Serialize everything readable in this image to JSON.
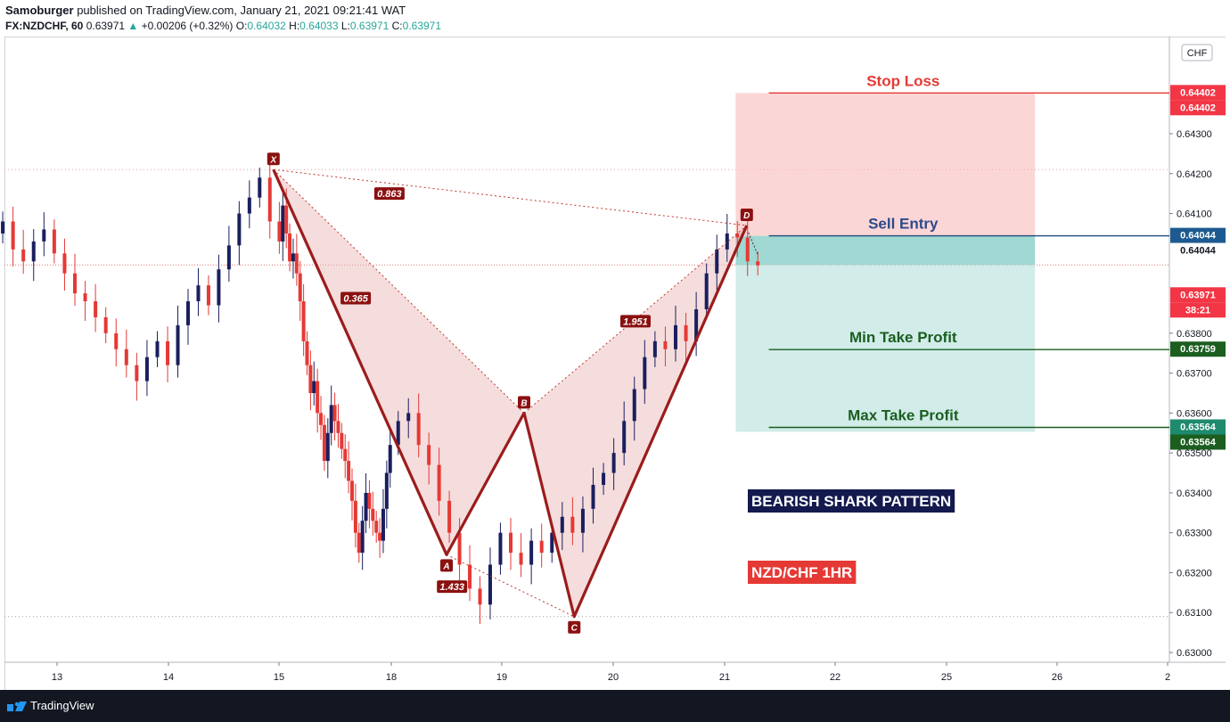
{
  "header": {
    "author": "Samoburger",
    "published_text": "published on TradingView.com, January 21, 2021 09:21:41 WAT",
    "symbol": "FX:NZDCHF, 60",
    "last": "0.63971",
    "change": "+0.00206 (+0.32%)",
    "o_label": "O:",
    "o_value": "0.64032",
    "h_label": "H:",
    "h_value": "0.64033",
    "l_label": "L:",
    "l_value": "0.63971",
    "c_label": "C:",
    "c_value": "0.63971"
  },
  "footer": {
    "brand": "TradingView"
  },
  "chart_data": {
    "type": "candlestick",
    "currency_badge": "CHF",
    "y_ticks": [
      "0.64300",
      "0.64200",
      "0.64100",
      "0.63800",
      "0.63700",
      "0.63600",
      "0.63500",
      "0.63400",
      "0.63300",
      "0.63200",
      "0.63100",
      "0.63000"
    ],
    "x_ticks": [
      "13",
      "14",
      "15",
      "18",
      "19",
      "20",
      "21",
      "22",
      "25",
      "26",
      "2"
    ],
    "price_labels": [
      {
        "text": "0.64402",
        "value": 0.64402,
        "color": "#f23645"
      },
      {
        "text": "0.64402",
        "value": 0.64402,
        "color": "#f23645",
        "offset": 1
      },
      {
        "text": "0.64044",
        "value": 0.64044,
        "color": "#1c5a8f"
      },
      {
        "text": "0.64044",
        "value": 0.64044,
        "color": "#ffffff",
        "text_color": "#131722",
        "offset": 1
      },
      {
        "text": "0.63971",
        "value": 0.63971,
        "color": "#f23645",
        "offset": 2
      },
      {
        "text": "38:21",
        "value": 0.63971,
        "color": "#f23645",
        "offset": 3
      },
      {
        "text": "0.63759",
        "value": 0.63759,
        "color": "#1b5e20"
      },
      {
        "text": "0.63564",
        "value": 0.63564,
        "color": "#1e8a6e"
      },
      {
        "text": "0.63564",
        "value": 0.63564,
        "color": "#1b5e20",
        "offset": 1
      }
    ],
    "pattern_points": [
      {
        "label": "X",
        "day": 14.95,
        "price": 0.6421
      },
      {
        "label": "A",
        "day": 18.5,
        "price": 0.63245
      },
      {
        "label": "B",
        "day": 19.2,
        "price": 0.636
      },
      {
        "label": "C",
        "day": 19.65,
        "price": 0.6309
      },
      {
        "label": "D",
        "day": 21.2,
        "price": 0.6407
      }
    ],
    "ratios": [
      {
        "text": "0.863",
        "day": 17.95,
        "price": 0.6415
      },
      {
        "text": "0.365",
        "day": 17.05,
        "price": 0.63888
      },
      {
        "text": "1.951",
        "day": 20.2,
        "price": 0.6383
      },
      {
        "text": "1.433",
        "day": 18.55,
        "price": 0.63165
      }
    ],
    "trade": {
      "stop_loss_label": "Stop Loss",
      "stop_loss": 0.64402,
      "entry_label": "Sell Entry",
      "entry": 0.64044,
      "min_tp_label": "Min Take Profit",
      "min_tp": 0.63759,
      "max_tp_label": "Max Take Profit",
      "max_tp": 0.63564
    },
    "title": "BEARISH SHARK PATTERN",
    "subtitle": "NZD/CHF    1HR",
    "series_close": [
      0.6392,
      0.6397,
      0.6402,
      0.6399,
      0.6405,
      0.6408,
      0.6401,
      0.6398,
      0.6403,
      0.6406,
      0.64,
      0.6395,
      0.639,
      0.6388,
      0.6384,
      0.638,
      0.6376,
      0.6372,
      0.6368,
      0.6374,
      0.6378,
      0.6372,
      0.6382,
      0.6388,
      0.6392,
      0.6387,
      0.6396,
      0.6402,
      0.641,
      0.6414,
      0.6419,
      0.6408,
      0.6403,
      0.6412,
      0.6405,
      0.6398,
      0.64,
      0.6395,
      0.6388,
      0.6378,
      0.6372,
      0.6365,
      0.6368,
      0.636,
      0.6357,
      0.6348,
      0.6355,
      0.6362,
      0.6358,
      0.6355,
      0.6351,
      0.6348,
      0.6343,
      0.6338,
      0.633,
      0.6325,
      0.6333,
      0.634,
      0.6336,
      0.6333,
      0.633,
      0.6328,
      0.6336,
      0.6345,
      0.6352,
      0.6358,
      0.636,
      0.6352,
      0.6347,
      0.6338,
      0.633,
      0.6322,
      0.6316,
      0.6312,
      0.6322,
      0.633,
      0.6325,
      0.6322,
      0.6328,
      0.6325,
      0.633,
      0.6334,
      0.633,
      0.6336,
      0.6342,
      0.6345,
      0.635,
      0.6358,
      0.6366,
      0.6374,
      0.6378,
      0.6376,
      0.6382,
      0.6378,
      0.6386,
      0.6395,
      0.6401,
      0.6405,
      0.6404,
      0.6398,
      0.6397
    ]
  }
}
